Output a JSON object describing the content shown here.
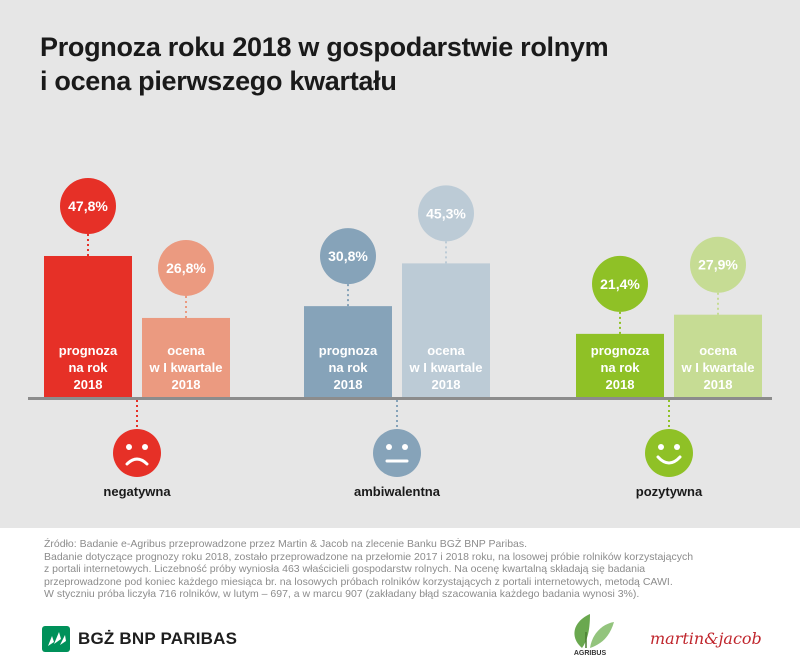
{
  "title_lines": [
    "Prognoza roku 2018 w gospodarstwie rolnym",
    "i ocena pierwszego kwartału"
  ],
  "chart_data": {
    "type": "bar",
    "categories": [
      "negatywna",
      "ambiwalentna",
      "pozytywna"
    ],
    "series": [
      {
        "name": "prognoza na rok 2018",
        "label_lines": [
          "prognoza",
          "na rok",
          "2018"
        ],
        "values": [
          47.8,
          30.8,
          21.4
        ],
        "value_labels": [
          "47,8%",
          "30,8%",
          "21,4%"
        ]
      },
      {
        "name": "ocena w I kwartale 2018",
        "label_lines": [
          "ocena",
          "w I kwartale",
          "2018"
        ],
        "values": [
          26.8,
          45.3,
          27.9
        ],
        "value_labels": [
          "26,8%",
          "45,3%",
          "27,9%"
        ]
      }
    ],
    "colors": {
      "negatywna": [
        "#e63027",
        "#eb9a80"
      ],
      "ambiwalentna": [
        "#86a3b9",
        "#bccbd6"
      ],
      "pozytywna": [
        "#8fc126",
        "#c6dc94"
      ]
    },
    "face_icons": [
      "sad-face-icon",
      "neutral-face-icon",
      "happy-face-icon"
    ],
    "ylim": [
      0,
      50
    ]
  },
  "source_lines": [
    "Źródło: Badanie e-Agribus przeprowadzone przez Martin & Jacob na zlecenie Banku BGŻ BNP Paribas.",
    "Badanie dotyczące prognozy roku 2018, zostało przeprowadzone na przełomie 2017 i 2018 roku, na losowej próbie rolników korzystających",
    "z portali internetowych. Liczebność próby wyniosła 463 właścicieli gospodarstw rolnych. Na ocenę kwartalną składają się badania",
    "przeprowadzone pod koniec każdego miesiąca br. na losowych próbach rolników korzystających z portali internetowych, metodą CAWI.",
    "W styczniu próba liczyła 716 rolników, w lutym – 697, a w marcu 907 (zakładany błąd szacowania każdego badania wynosi 3%)."
  ],
  "logos": {
    "bnp": "BGŻ BNP PARIBAS",
    "agribus": "AGRIBUS",
    "martin_jacob": "martin&jacob"
  }
}
